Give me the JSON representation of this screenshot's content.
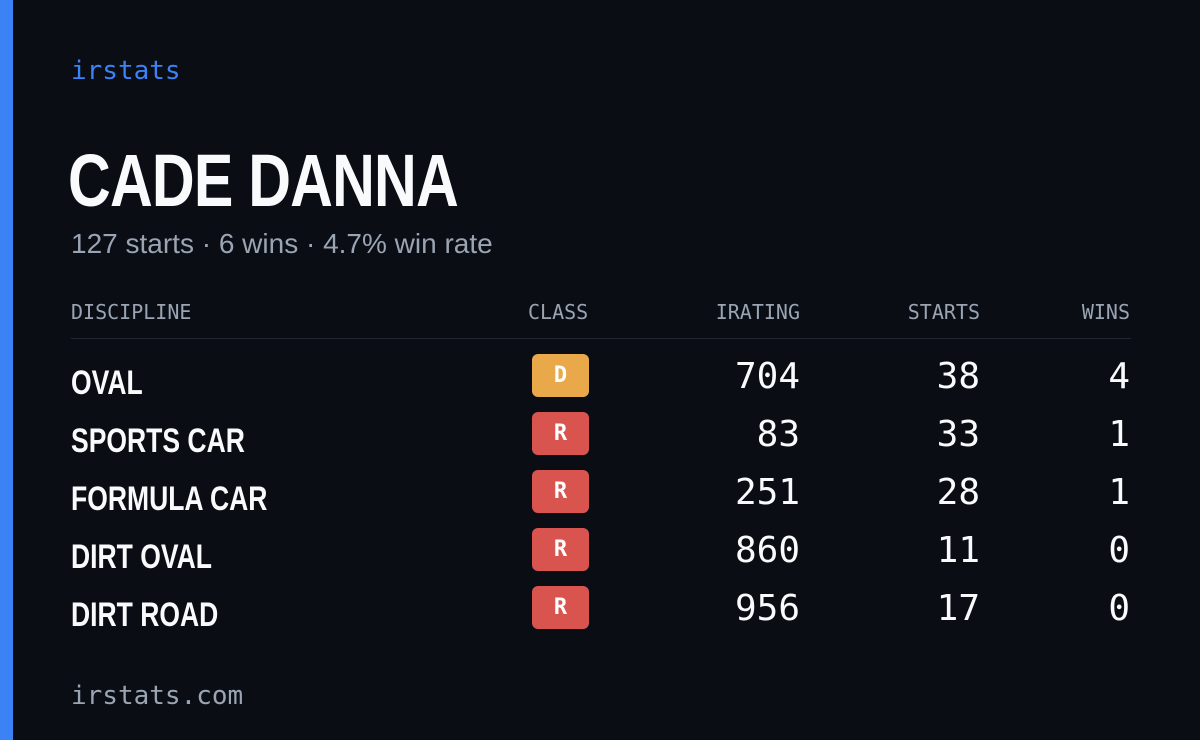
{
  "brand": "irstats",
  "driver": {
    "name": "CADE DANNA",
    "summary": "127 starts · 6 wins · 4.7% win rate"
  },
  "table": {
    "headers": {
      "discipline": "DISCIPLINE",
      "class": "CLASS",
      "irating": "IRATING",
      "starts": "STARTS",
      "wins": "WINS"
    },
    "rows": [
      {
        "discipline": "OVAL",
        "class": "D",
        "class_color": "#e9a84a",
        "irating": "704",
        "starts": "38",
        "wins": "4"
      },
      {
        "discipline": "SPORTS CAR",
        "class": "R",
        "class_color": "#d9534f",
        "irating": "83",
        "starts": "33",
        "wins": "1"
      },
      {
        "discipline": "FORMULA CAR",
        "class": "R",
        "class_color": "#d9534f",
        "irating": "251",
        "starts": "28",
        "wins": "1"
      },
      {
        "discipline": "DIRT OVAL",
        "class": "R",
        "class_color": "#d9534f",
        "irating": "860",
        "starts": "11",
        "wins": "0"
      },
      {
        "discipline": "DIRT ROAD",
        "class": "R",
        "class_color": "#d9534f",
        "irating": "956",
        "starts": "17",
        "wins": "0"
      }
    ]
  },
  "footer": "irstats.com",
  "colors": {
    "background": "#0a0d14",
    "accent": "#3b82f6",
    "text_primary": "#f8fafc",
    "text_muted": "#9aa4b2"
  }
}
